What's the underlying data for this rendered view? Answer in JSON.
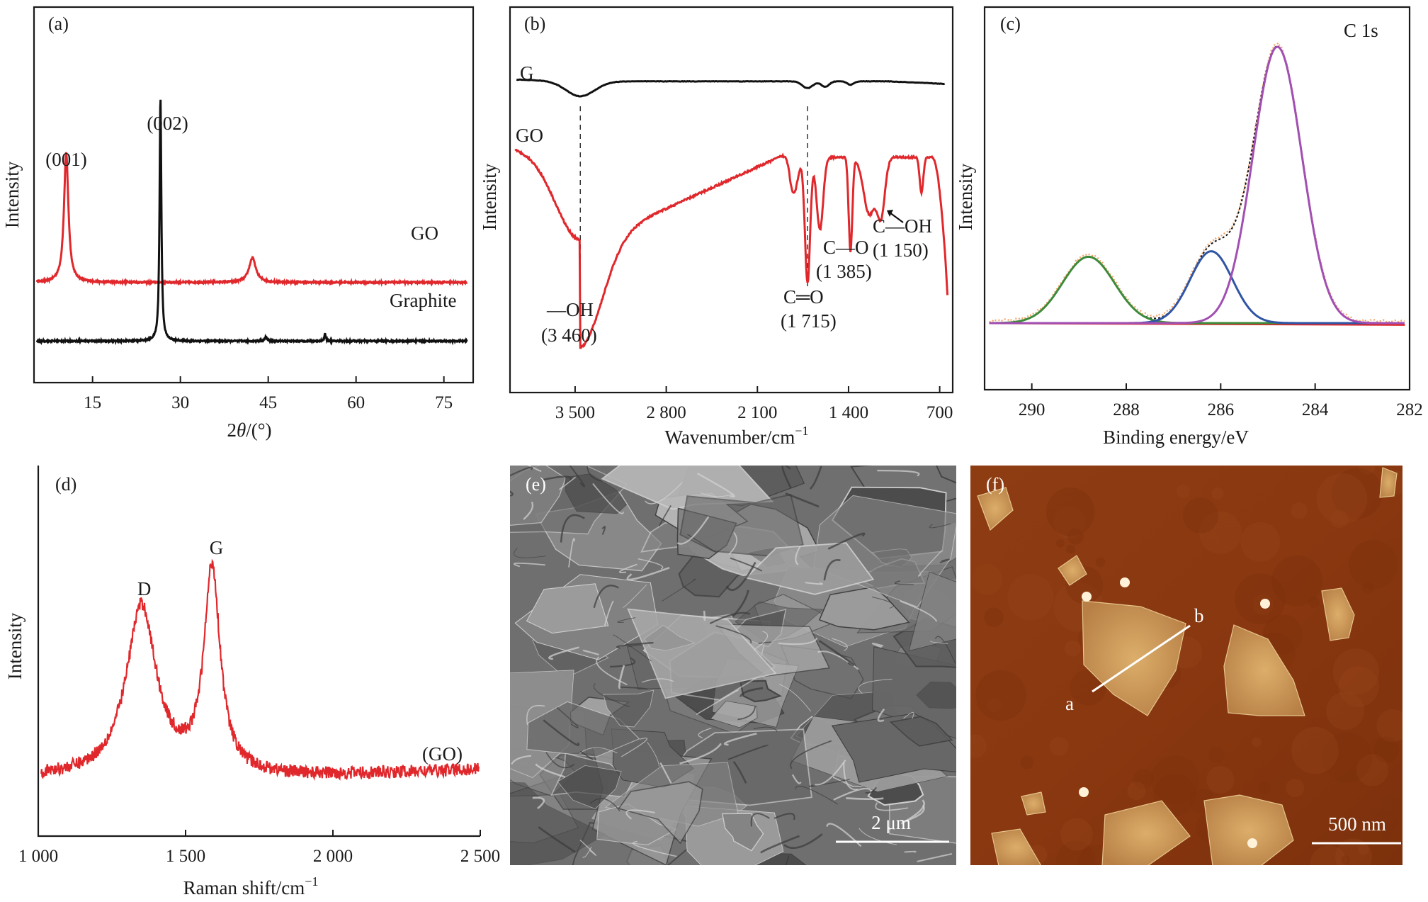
{
  "panels": {
    "a": {
      "label": "(a)"
    },
    "b": {
      "label": "(b)"
    },
    "c": {
      "label": "(c)",
      "title": "C 1s"
    },
    "d": {
      "label": "(d)"
    },
    "e": {
      "label": "(e)",
      "scalebar": "2 μm"
    },
    "f": {
      "label": "(f)",
      "scalebar": "500 nm",
      "line_start": "a",
      "line_end": "b"
    }
  },
  "colors": {
    "red": "#e0282c",
    "black": "#111111",
    "green": "#3d8a3a",
    "blue": "#2f55a4",
    "purple": "#a24fb3",
    "orange": "#f2a468",
    "sem": "#7f7f7f",
    "afm": "#8a3a10"
  },
  "chart_data": [
    {
      "id": "a",
      "type": "line",
      "xlabel_prefix": "2",
      "xlabel_var": "θ",
      "xlabel_suffix": "/(°)",
      "ylabel": "Intensity",
      "xlim": [
        5,
        80
      ],
      "xticks": [
        15,
        30,
        45,
        60,
        75
      ],
      "grid": false,
      "series": [
        {
          "name": "GO",
          "color": "#e0282c",
          "baseline": 0.41,
          "peaks": [
            {
              "x": 10.5,
              "h": 0.53,
              "w": 0.45
            },
            {
              "x": 42.3,
              "h": 0.1,
              "w": 0.7
            }
          ]
        },
        {
          "name": "Graphite",
          "color": "#111111",
          "baseline": 0.17,
          "peaks": [
            {
              "x": 26.6,
              "h": 1.0,
              "w": 0.18
            },
            {
              "x": 44.6,
              "h": 0.018,
              "w": 0.2
            },
            {
              "x": 54.7,
              "h": 0.03,
              "w": 0.15
            }
          ]
        }
      ],
      "annotations": [
        {
          "text": "(001)",
          "x": 10.5
        },
        {
          "text": "(002)",
          "x": 26.6
        }
      ]
    },
    {
      "id": "b",
      "type": "line",
      "xlabel": "Wavenumber/cm",
      "xlabel_sup": "−1",
      "ylabel": "Intensity",
      "xlim": [
        4000,
        600
      ],
      "xreversed": true,
      "xticks": [
        3500,
        2800,
        2100,
        1400,
        700
      ],
      "xtick_labels": [
        "3 500",
        "2 800",
        "2 100",
        "1 400",
        "700"
      ],
      "grid": false,
      "series": [
        {
          "name": "G",
          "color": "#111111"
        },
        {
          "name": "GO",
          "color": "#e0282c"
        }
      ],
      "dashed_markers": [
        3460,
        1715
      ],
      "annotations": [
        {
          "text": "—OH",
          "sub": "(3 460)",
          "x": 3460
        },
        {
          "text": "C═O",
          "sub": "(1 715)",
          "x": 1715
        },
        {
          "text": "C—O",
          "sub": "(1 385)",
          "x": 1385
        },
        {
          "text": "C—OH",
          "sub": "(1 150)",
          "x": 1150
        }
      ]
    },
    {
      "id": "c",
      "type": "line",
      "xlabel": "Binding energy/eV",
      "ylabel": "Intensity",
      "xlim": [
        291,
        282
      ],
      "xreversed": true,
      "xticks": [
        290,
        288,
        286,
        284,
        282
      ],
      "grid": false,
      "components": [
        {
          "center": 288.8,
          "height": 0.24,
          "sigma": 0.55,
          "color": "#3d8a3a"
        },
        {
          "center": 286.2,
          "height": 0.26,
          "sigma": 0.45,
          "color": "#2f55a4"
        },
        {
          "center": 284.8,
          "height": 1.0,
          "sigma": 0.52,
          "color": "#a24fb3"
        }
      ],
      "baseline_color": "#e0282c",
      "envelope_color": "#f2a468"
    },
    {
      "id": "d",
      "type": "line",
      "xlabel": "Raman shift/cm",
      "xlabel_sup": "−1",
      "ylabel": "Intensity",
      "xlim": [
        1000,
        2500
      ],
      "xticks": [
        1000,
        1500,
        2000,
        2500
      ],
      "xtick_labels": [
        "1 000",
        "1 500",
        "2 000",
        "2 500"
      ],
      "grid": false,
      "series": [
        {
          "name": "(GO)",
          "color": "#e0282c"
        }
      ],
      "peaks": [
        {
          "name": "D",
          "x": 1350,
          "h": 0.62
        },
        {
          "name": "G",
          "x": 1590,
          "h": 0.78
        }
      ]
    }
  ]
}
